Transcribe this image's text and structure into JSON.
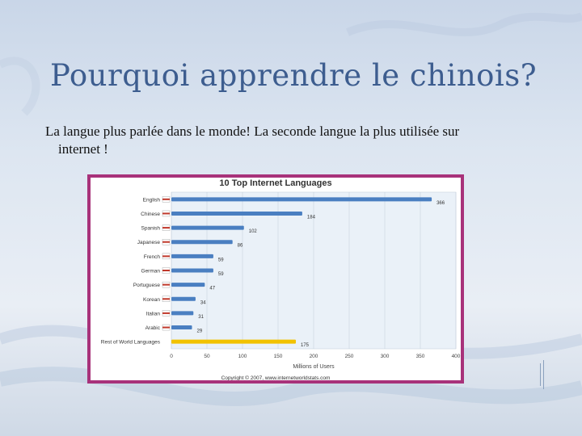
{
  "slide": {
    "title": "Pourquoi apprendre le chinois?",
    "body_line1": "La langue plus parlée dans le monde! La seconde langue la plus utilisée sur",
    "body_line2": "internet !"
  },
  "colors": {
    "title": "#3d5d8f",
    "frame": "#a8327a",
    "bar": "#4a7fc1",
    "highlight_bar": "#f2c200",
    "plot_bg": "#eaf1f8"
  },
  "chart_data": {
    "type": "bar",
    "orientation": "horizontal",
    "title": "10 Top Internet Languages",
    "xlabel": "Millions of Users",
    "ylabel": "",
    "xlim": [
      0,
      400
    ],
    "x_ticks": [
      "0",
      "50",
      "100",
      "150",
      "200",
      "250",
      "300",
      "350",
      "400"
    ],
    "grid": true,
    "categories": [
      "English",
      "Chinese",
      "Spanish",
      "Japanese",
      "French",
      "German",
      "Portuguese",
      "Korean",
      "Italian",
      "Arabic",
      "Rest of World Languages"
    ],
    "values": [
      366,
      184,
      102,
      86,
      59,
      59,
      47,
      34,
      31,
      29,
      175
    ],
    "data_labels": [
      "366",
      "184",
      "102",
      "86",
      "59",
      "59",
      "47",
      "34",
      "31",
      "29",
      "175"
    ],
    "highlight_category": "Rest of World Languages",
    "footer": "Copyright © 2007, www.internetworldstats.com"
  }
}
